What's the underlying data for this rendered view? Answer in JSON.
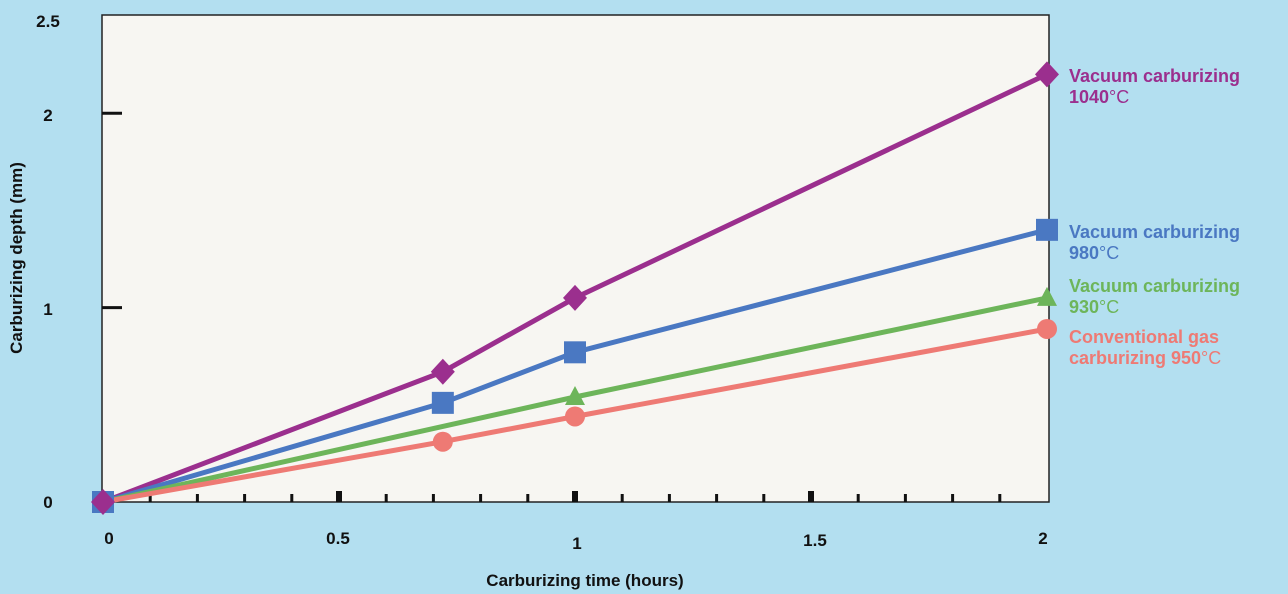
{
  "chart_data": {
    "type": "line",
    "title": "",
    "xlabel": "Carburizing time (hours)",
    "ylabel": "Carburizing depth (mm)",
    "xlim": [
      0,
      2
    ],
    "ylim": [
      0,
      2.5
    ],
    "x_ticks": [
      "0",
      "0.5",
      "1",
      "1.5",
      "2"
    ],
    "y_ticks": [
      "0",
      "1",
      "2",
      "2.5"
    ],
    "grid": false,
    "legend": "labels at line ends (right)",
    "series": [
      {
        "name_line1": "Vacuum carburizing",
        "name_line2": "1040",
        "unit": "°C",
        "color": "#9b2f8e",
        "marker": "diamond",
        "x": [
          0,
          0.72,
          1.0,
          2.0
        ],
        "y": [
          0,
          0.67,
          1.05,
          2.2
        ]
      },
      {
        "name_line1": "Vacuum carburizing",
        "name_line2": "980",
        "unit": "°C",
        "color": "#4a78c2",
        "marker": "square",
        "x": [
          0,
          0.72,
          1.0,
          2.0
        ],
        "y": [
          0,
          0.51,
          0.77,
          1.4
        ]
      },
      {
        "name_line1": "Vacuum carburizing",
        "name_line2": "930",
        "unit": "°C",
        "color": "#6db55a",
        "marker": "triangle",
        "x": [
          0,
          1.0,
          2.0
        ],
        "y": [
          0,
          0.54,
          1.05
        ]
      },
      {
        "name_line1": "Conventional gas",
        "name_line2": "carburizing 950",
        "unit": "°C",
        "color": "#ee7a74",
        "marker": "circle",
        "x": [
          0,
          0.72,
          1.0,
          2.0
        ],
        "y": [
          0,
          0.31,
          0.44,
          0.89
        ]
      }
    ]
  }
}
